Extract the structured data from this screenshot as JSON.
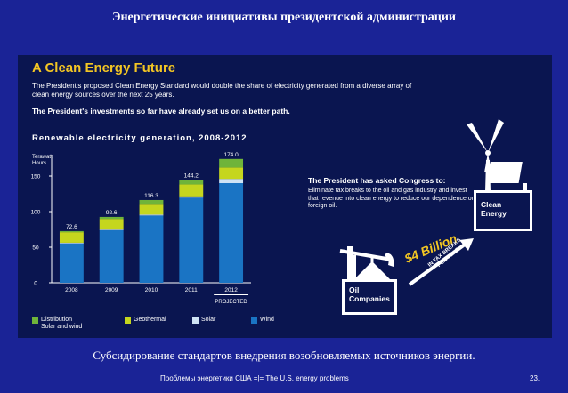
{
  "slide": {
    "title": "Энергетические инициативы президентской администрации",
    "caption": "Субсидирование стандартов внедрения возобновляемых источников энергии.",
    "footer": "Проблемы энергетики США =|= The U.S. energy problems",
    "page_number": "23."
  },
  "panel": {
    "title": "A Clean Energy Future",
    "intro": "The President's proposed Clean Energy Standard would double the share of electricity generated from a diverse array of clean energy sources over the next 25 years.",
    "intro2": "The President's investments so far have already set us on a better path.",
    "congress_title": "The President has asked Congress to:",
    "congress_text": "Eliminate tax breaks to the oil and gas industry and invest that revenue into clean energy to reduce our dependence on foreign oil.",
    "billion": "$4 Billion",
    "tax_breaks_line1": "IN TAX BREAKS",
    "tax_breaks_line2": "PER YEAR",
    "oil_label_1": "Oil",
    "oil_label_2": "Companies",
    "clean_label_1": "Clean",
    "clean_label_2": "Energy"
  },
  "colors": {
    "slide_bg": "#1a2396",
    "panel_bg": "#0a1550",
    "accent_yellow": "#f3c623",
    "wind": "#1a74c4",
    "solar": "#cfe3f5",
    "geothermal": "#c5d61e",
    "distribution": "#6fb43a"
  },
  "chart_data": {
    "type": "bar",
    "stacked": true,
    "title": "Renewable electricity generation, 2008-2012",
    "ylabel_line1": "Terawatt",
    "ylabel_line2": "Hours",
    "xlabel": "",
    "categories": [
      "2008",
      "2009",
      "2010",
      "2011",
      "2012"
    ],
    "totals": [
      72.6,
      92.6,
      116.3,
      144.2,
      174.0
    ],
    "total_labels": [
      "72.6",
      "92.6",
      "116.3",
      "144.2",
      "174.0"
    ],
    "series": [
      {
        "name": "Wind",
        "color": "#1a74c4",
        "values": [
          55.4,
          73.9,
          94.6,
          119.7,
          140.0
        ]
      },
      {
        "name": "Solar",
        "color": "#cfe3f5",
        "values": [
          0.9,
          0.9,
          1.2,
          1.8,
          6.0
        ]
      },
      {
        "name": "Geothermal",
        "color": "#c5d61e",
        "values": [
          14.8,
          15.0,
          15.2,
          16.7,
          16.0
        ]
      },
      {
        "name": "Distribution Solar and wind",
        "color": "#6fb43a",
        "values": [
          1.5,
          2.8,
          5.3,
          6.0,
          12.0
        ]
      }
    ],
    "legend": [
      {
        "name_line1": "Distribution",
        "name_line2": "Solar and wind",
        "color": "#6fb43a"
      },
      {
        "name_line1": "Geothermal",
        "name_line2": "",
        "color": "#c5d61e"
      },
      {
        "name_line1": "Solar",
        "name_line2": "",
        "color": "#cfe3f5"
      },
      {
        "name_line1": "Wind",
        "name_line2": "",
        "color": "#1a74c4"
      }
    ],
    "yticks": [
      "0",
      "50",
      "100",
      "150"
    ],
    "ytick_values": [
      0,
      50,
      100,
      150
    ],
    "ylim": [
      0,
      180
    ],
    "projected_label": "PROJECTED",
    "grid": false,
    "legend_position": "bottom"
  }
}
